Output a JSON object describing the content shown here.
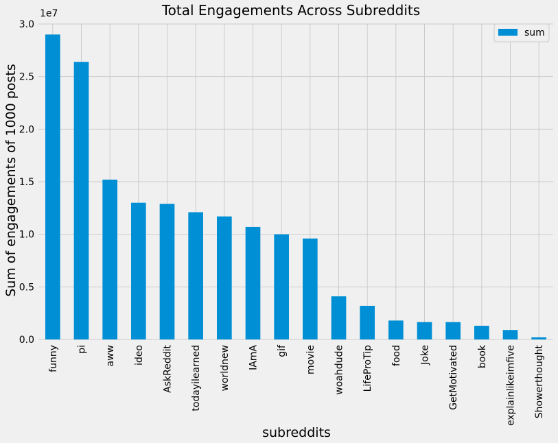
{
  "chart_data": {
    "type": "bar",
    "title": "Total Engagements Across Subreddits",
    "xlabel": "subreddits",
    "ylabel": "Sum of engagements of 1000 posts",
    "y_multiplier_label": "1e7",
    "ylim": [
      0,
      3.0
    ],
    "yticks": [
      "0.0",
      "0.5",
      "1.0",
      "1.5",
      "2.0",
      "2.5",
      "3.0"
    ],
    "grid": true,
    "legend_placement": "top-right",
    "bar_color": "#008fd5",
    "categories": [
      "funny",
      "pi",
      "aww",
      "ideo",
      "AskReddit",
      "todayilearned",
      "worldnew",
      "IAmA",
      "gif",
      "movie",
      "woahdude",
      "LifeProTip",
      "food",
      "Joke",
      "GetMotivated",
      "book",
      "explainlikeimfive",
      "Showerthought"
    ],
    "series": [
      {
        "name": "sum",
        "values": [
          2.9,
          2.64,
          1.52,
          1.3,
          1.29,
          1.21,
          1.17,
          1.07,
          1.0,
          0.96,
          0.41,
          0.32,
          0.18,
          0.165,
          0.165,
          0.13,
          0.09,
          0.02
        ]
      }
    ]
  }
}
